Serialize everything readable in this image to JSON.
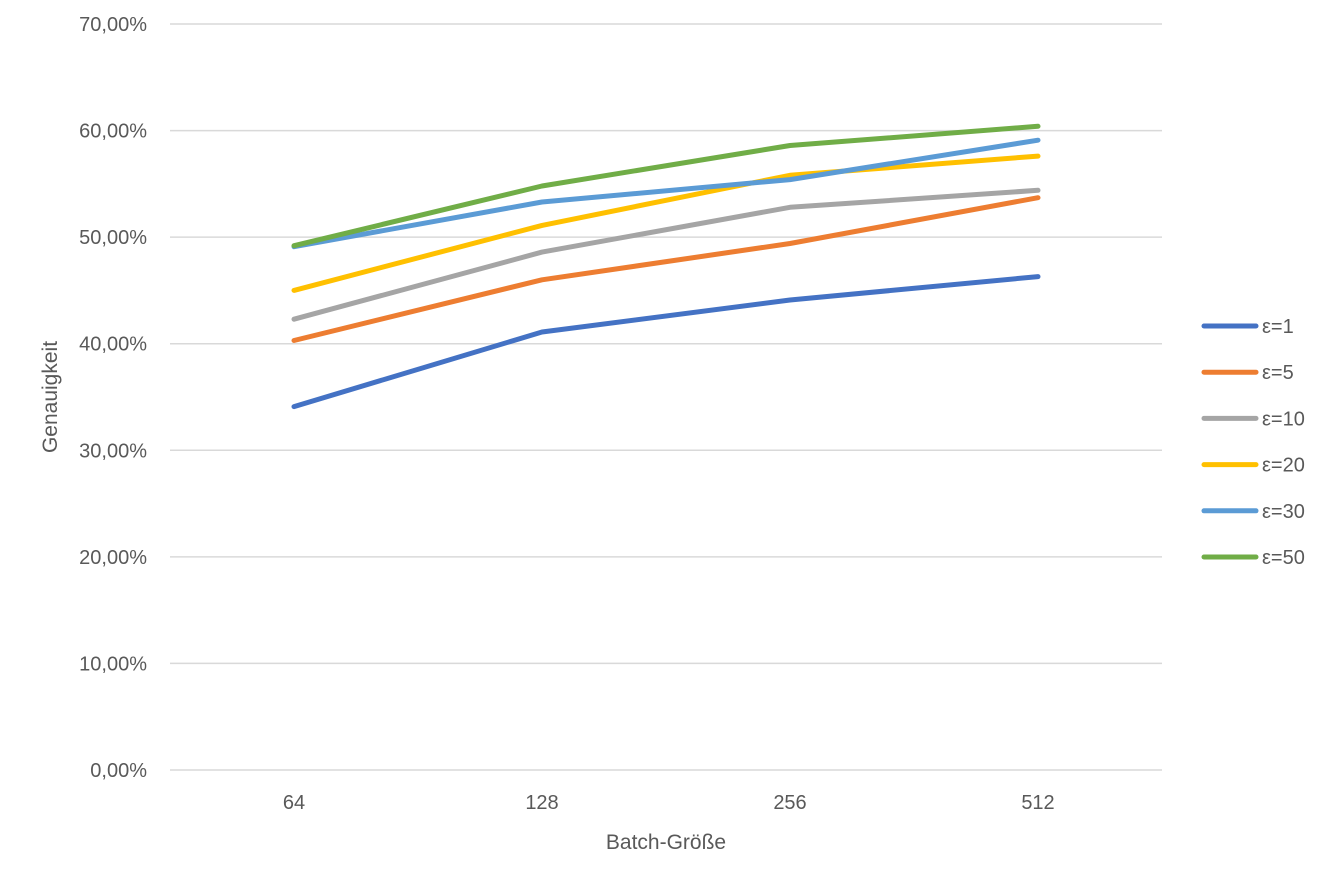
{
  "chart_data": {
    "type": "line",
    "xlabel": "Batch-Größe",
    "ylabel": "Genauigkeit",
    "categories": [
      "64",
      "128",
      "256",
      "512"
    ],
    "ylim": [
      0,
      0.7
    ],
    "y_ticks": [
      0,
      0.1,
      0.2,
      0.3,
      0.4,
      0.5,
      0.6,
      0.7
    ],
    "y_tick_labels": [
      "0,00%",
      "10,00%",
      "20,00%",
      "30,00%",
      "40,00%",
      "50,00%",
      "60,00%",
      "70,00%"
    ],
    "grid": true,
    "legend_position": "right",
    "series": [
      {
        "name": "ε=1",
        "color": "#4472c4",
        "values": [
          0.341,
          0.411,
          0.441,
          0.463
        ]
      },
      {
        "name": "ε=5",
        "color": "#ed7d31",
        "values": [
          0.403,
          0.46,
          0.494,
          0.537
        ]
      },
      {
        "name": "ε=10",
        "color": "#a5a5a5",
        "values": [
          0.423,
          0.486,
          0.528,
          0.544
        ]
      },
      {
        "name": "ε=20",
        "color": "#ffc000",
        "values": [
          0.45,
          0.511,
          0.558,
          0.576
        ]
      },
      {
        "name": "ε=30",
        "color": "#5b9bd5",
        "values": [
          0.491,
          0.533,
          0.554,
          0.591
        ]
      },
      {
        "name": "ε=50",
        "color": "#70ad47",
        "values": [
          0.492,
          0.548,
          0.586,
          0.604
        ]
      }
    ]
  }
}
